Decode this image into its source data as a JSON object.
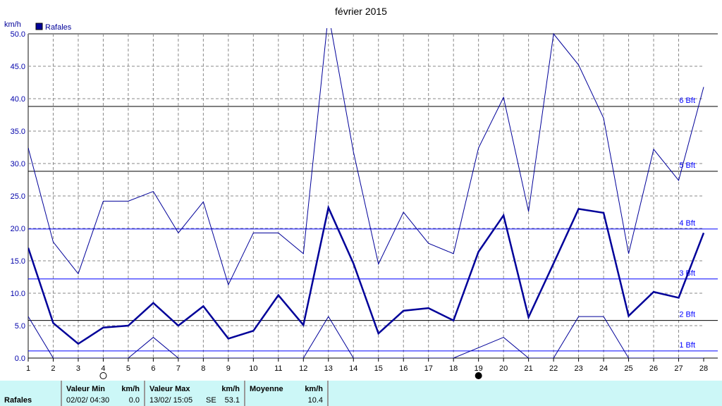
{
  "chart_data": {
    "type": "line",
    "title": "février 2015",
    "ylabel": "km/h",
    "legend": "Rafales",
    "legend_color": "#000099",
    "ylim": [
      0,
      50
    ],
    "yticks": [
      "0.0",
      "5.0",
      "10.0",
      "15.0",
      "20.0",
      "25.0",
      "30.0",
      "35.0",
      "40.0",
      "45.0",
      "50.0"
    ],
    "x": [
      1,
      2,
      3,
      4,
      5,
      6,
      7,
      8,
      9,
      10,
      11,
      12,
      13,
      14,
      15,
      16,
      17,
      18,
      19,
      20,
      21,
      22,
      23,
      24,
      25,
      26,
      27,
      28
    ],
    "series": [
      {
        "name": "max",
        "values": [
          32.4,
          17.9,
          13.0,
          24.2,
          24.2,
          25.7,
          19.3,
          24.1,
          11.3,
          19.3,
          19.3,
          16.1,
          53.1,
          31.8,
          14.5,
          22.5,
          17.7,
          16.1,
          32.4,
          40.2,
          22.6,
          50.0,
          45.2,
          37.0,
          16.1,
          32.2,
          27.4,
          41.8
        ]
      },
      {
        "name": "mean",
        "values": [
          17.0,
          5.4,
          2.2,
          4.7,
          5.0,
          8.5,
          5.0,
          8.0,
          3.0,
          4.2,
          9.7,
          5.1,
          23.2,
          14.6,
          3.8,
          7.3,
          7.7,
          5.8,
          16.4,
          22.0,
          6.3,
          14.6,
          23.0,
          22.4,
          6.5,
          10.2,
          9.3,
          19.3
        ]
      },
      {
        "name": "min",
        "values": [
          6.4,
          0,
          0,
          0,
          0,
          3.2,
          0,
          0,
          0,
          0,
          0,
          0,
          6.4,
          0,
          0,
          0,
          0,
          0,
          1.6,
          3.2,
          0,
          0,
          6.4,
          6.4,
          0,
          0,
          0,
          0
        ]
      }
    ],
    "beaufort": [
      {
        "label": "1 Bft",
        "value": 1.1,
        "color": "#0000ff"
      },
      {
        "label": "2 Bft",
        "value": 5.8,
        "color": "#000000"
      },
      {
        "label": "3 Bft",
        "value": 12.2,
        "color": "#0000ff"
      },
      {
        "label": "4 Bft",
        "value": 19.9,
        "color": "#0000ff"
      },
      {
        "label": "5 Bft",
        "value": 28.8,
        "color": "#000000"
      },
      {
        "label": "6 Bft",
        "value": 38.8,
        "color": "#000000"
      }
    ],
    "moon": [
      {
        "day": 4,
        "phase": "full"
      },
      {
        "day": 19,
        "phase": "new"
      }
    ],
    "grid": true
  },
  "footer": {
    "row_label": "Rafales",
    "min_header": "Valeur Min",
    "min_unit": "km/h",
    "min_date": "02/02/  04:30",
    "min_value": "0.0",
    "max_header": "Valeur Max",
    "max_unit": "km/h",
    "max_date": "13/02/  15:05",
    "max_dir": "SE",
    "max_value": "53.1",
    "avg_header": "Moyenne",
    "avg_unit": "km/h",
    "avg_value": "10.4"
  }
}
